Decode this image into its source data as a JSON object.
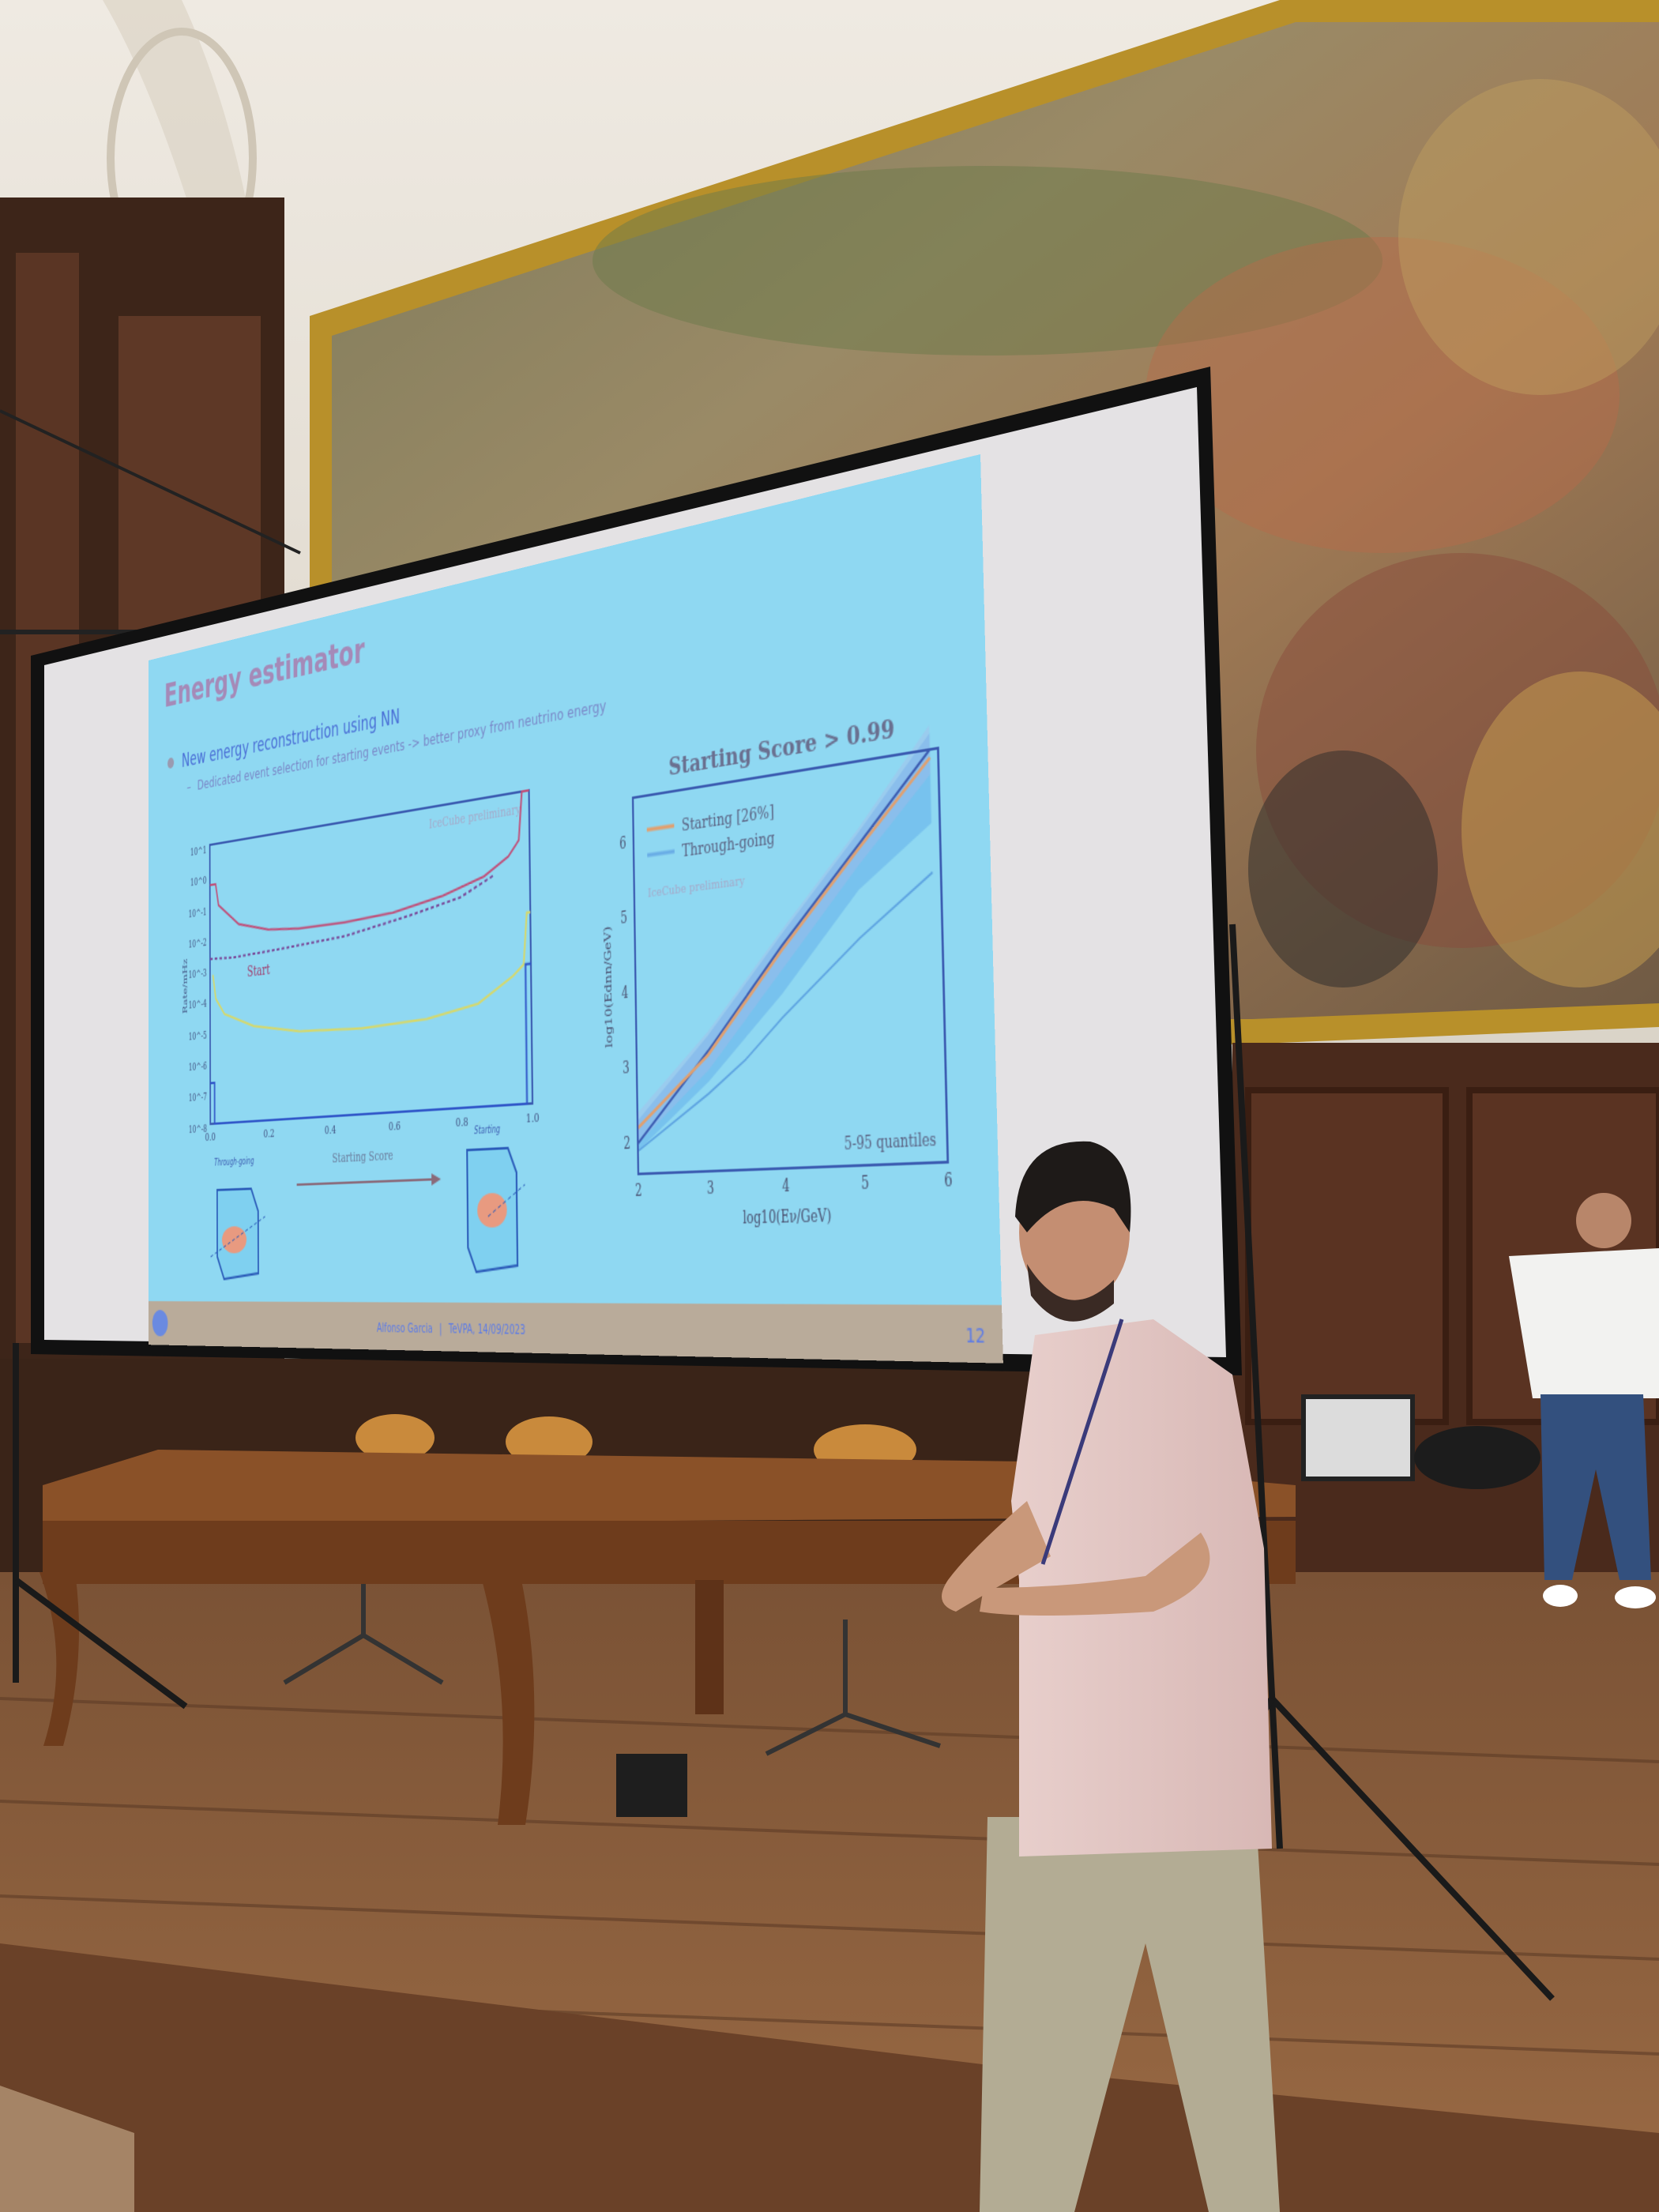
{
  "slide": {
    "title": "Energy estimator",
    "bullet": "New energy reconstruction using NN",
    "sub_bullet": "Dedicated event selection for starting events -> better proxy from neutrino energy",
    "footer_author": "Alfonso Garcia",
    "footer_separator": "|",
    "footer_event": "TeVPA, 14/09/2023",
    "page_number": "12",
    "colors": {
      "background": "#8fd8f2",
      "title": "#a58ab8",
      "text": "#4a6fd6",
      "footer": "#b9ab9a"
    }
  },
  "left_plot": {
    "watermark": "IceCube preliminary",
    "ylabel": "Rate/mHz",
    "xlabel": "Starting Score",
    "annotation": "Start",
    "xticks": [
      "0.0",
      "0.2",
      "0.4",
      "0.6",
      "0.8",
      "1.0"
    ],
    "yticks": [
      "10^1",
      "10^0",
      "10^-1",
      "10^-2",
      "10^-3",
      "10^-4",
      "10^-5",
      "10^-6",
      "10^-7",
      "10^-8"
    ],
    "yscale": "log",
    "xlim": [
      0,
      1
    ],
    "ylim_exponent": [
      -8,
      1
    ],
    "icon_left_label": "Through-going",
    "icon_right_label": "Starting",
    "series": [
      {
        "color": "#c0507a",
        "style": "solid",
        "points": [
          [
            0,
            0.5
          ],
          [
            0.02,
            0.5
          ],
          [
            0.03,
            0.1
          ],
          [
            0.1,
            0.02
          ],
          [
            0.2,
            0.01
          ],
          [
            0.3,
            0.008
          ],
          [
            0.45,
            0.008
          ],
          [
            0.6,
            0.01
          ],
          [
            0.75,
            0.02
          ],
          [
            0.87,
            0.05
          ],
          [
            0.94,
            0.15
          ],
          [
            0.97,
            0.4
          ],
          [
            0.98,
            10
          ],
          [
            1,
            10
          ]
        ]
      },
      {
        "color": "#7a4a9a",
        "style": "dashed",
        "points": [
          [
            0,
            0.002
          ],
          [
            0.08,
            0.0018
          ],
          [
            0.25,
            0.0022
          ],
          [
            0.45,
            0.003
          ],
          [
            0.65,
            0.007
          ],
          [
            0.8,
            0.015
          ],
          [
            0.9,
            0.05
          ]
        ]
      },
      {
        "color": "#d6d86a",
        "style": "solid",
        "points": [
          [
            0.01,
            0.0006
          ],
          [
            0.02,
            0.0001
          ],
          [
            0.05,
            3e-05
          ],
          [
            0.15,
            1e-05
          ],
          [
            0.3,
            5e-06
          ],
          [
            0.5,
            4e-06
          ],
          [
            0.7,
            5e-06
          ],
          [
            0.85,
            1e-05
          ],
          [
            0.95,
            5e-05
          ],
          [
            0.98,
            0.0001
          ],
          [
            0.99,
            0.003
          ],
          [
            1,
            0.003
          ]
        ]
      },
      {
        "color": "#2f55c8",
        "style": "solid",
        "points": [
          [
            0,
            2e-07
          ],
          [
            0.015,
            2e-07
          ],
          [
            0.015,
            1e-08
          ],
          [
            0.985,
            1e-08
          ],
          [
            0.985,
            0.0001
          ],
          [
            1,
            0.0001
          ]
        ]
      }
    ]
  },
  "right_plot": {
    "title": "Starting Score > 0.99",
    "legend": [
      {
        "label": "Starting [26%]",
        "color": "#e0a070"
      },
      {
        "label": "Through-going",
        "color": "#6aaee6"
      }
    ],
    "legend_placement": "top-left",
    "watermark": "IceCube preliminary",
    "annotation": "5-95 quantiles",
    "xlabel": "log10(Eν/GeV)",
    "ylabel": "log10(Ednn/GeV)",
    "xticks": [
      "2",
      "3",
      "4",
      "5",
      "6"
    ],
    "yticks": [
      "2",
      "3",
      "4",
      "5",
      "6"
    ],
    "xlim": [
      2,
      6
    ],
    "ylim": [
      1.6,
      6.6
    ],
    "starting_median": [
      [
        2,
        2.2
      ],
      [
        3,
        3.1
      ],
      [
        4,
        4.35
      ],
      [
        5,
        5.5
      ],
      [
        5.9,
        6.5
      ]
    ],
    "through_median": [
      [
        2,
        2.0
      ],
      [
        3,
        3.15
      ],
      [
        4,
        4.4
      ],
      [
        5,
        5.55
      ],
      [
        5.9,
        6.6
      ]
    ],
    "through_low": [
      [
        2,
        1.9
      ],
      [
        3,
        2.6
      ],
      [
        3.5,
        3.0
      ],
      [
        4,
        3.5
      ],
      [
        5,
        4.4
      ],
      [
        5.9,
        5.1
      ]
    ],
    "starting_band": {
      "upper": [
        [
          2,
          2.4
        ],
        [
          3,
          3.4
        ],
        [
          4,
          4.6
        ],
        [
          5,
          5.75
        ],
        [
          5.9,
          6.9
        ]
      ],
      "lower": [
        [
          5.9,
          6.3
        ],
        [
          5,
          5.3
        ],
        [
          4,
          4.1
        ],
        [
          3,
          2.9
        ],
        [
          2,
          2.0
        ]
      ]
    },
    "through_band": {
      "upper": [
        [
          2,
          2.3
        ],
        [
          3,
          3.35
        ],
        [
          4,
          4.55
        ],
        [
          5,
          5.7
        ],
        [
          5.9,
          6.8
        ]
      ],
      "lower": [
        [
          5.9,
          5.7
        ],
        [
          5,
          5.0
        ],
        [
          4,
          3.8
        ],
        [
          3,
          2.75
        ],
        [
          2,
          1.9
        ]
      ]
    }
  }
}
